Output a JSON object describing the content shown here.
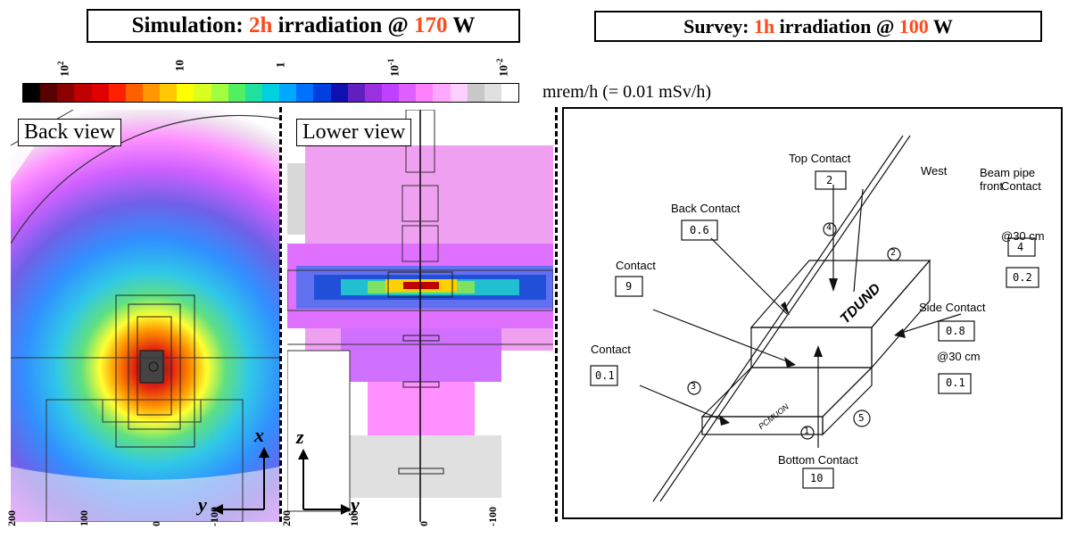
{
  "simulation_title": {
    "prefix": "Simulation: ",
    "time": "2h",
    "middle": " irradiation @ ",
    "power": "170",
    "suffix": " W"
  },
  "survey_title": {
    "prefix": "Survey: ",
    "time": "1h",
    "middle": " irradiation @ ",
    "power": "100",
    "suffix": " W"
  },
  "colorbar": {
    "unit_label": "mrem/h (= 0.01 mSv/h)",
    "tick_labels": [
      {
        "base": "10",
        "exp": "2"
      },
      {
        "base": "10",
        "exp": ""
      },
      {
        "base": "1",
        "exp": ""
      },
      {
        "base": "10",
        "exp": "-1"
      },
      {
        "base": "10",
        "exp": "-2"
      }
    ],
    "colors": [
      "#000000",
      "#5a0000",
      "#8b0000",
      "#c00000",
      "#e00000",
      "#ff2000",
      "#ff6000",
      "#ff9800",
      "#ffc800",
      "#ffff00",
      "#d8ff20",
      "#a0ff40",
      "#50f060",
      "#20e0a0",
      "#00d0e0",
      "#00a8ff",
      "#0070ff",
      "#0040e0",
      "#1010b0",
      "#6020c0",
      "#9a30e0",
      "#c040ff",
      "#e060ff",
      "#ff80ff",
      "#ffa8ff",
      "#ffd0ff",
      "#c8c8c8",
      "#e0e0e0",
      "#ffffff"
    ]
  },
  "back_view": {
    "label": "Back view",
    "axis_x": "x",
    "axis_y": "y"
  },
  "lower_view": {
    "label": "Lower view",
    "axis_z": "z",
    "axis_y": "y"
  },
  "bottom_ticks": [
    "200",
    "100",
    "0",
    "-100",
    "200",
    "100",
    "0",
    "-100"
  ],
  "survey": {
    "labels": {
      "top_contact": "Top Contact",
      "west": "West",
      "beam_pipe": "Beam pipe front",
      "beam_pipe2": "Contact",
      "at30_a": "@30 cm",
      "back_contact": "Back Contact",
      "contact_left": "Contact",
      "side_contact": "Side Contact",
      "at30_b": "@30 cm",
      "contact_low": "Contact",
      "bottom_contact": "Bottom Contact",
      "tdund": "TDUND",
      "pcmuon": "PCMUON"
    },
    "values": {
      "top": "2",
      "back": "0.6",
      "beam_front": "4",
      "beam_30": "0.2",
      "contact_left": "9",
      "side": "0.8",
      "side_30": "0.1",
      "contact_low": "0.1",
      "bottom": "10"
    },
    "circled": [
      "4",
      "2",
      "3",
      "1",
      "5"
    ]
  }
}
